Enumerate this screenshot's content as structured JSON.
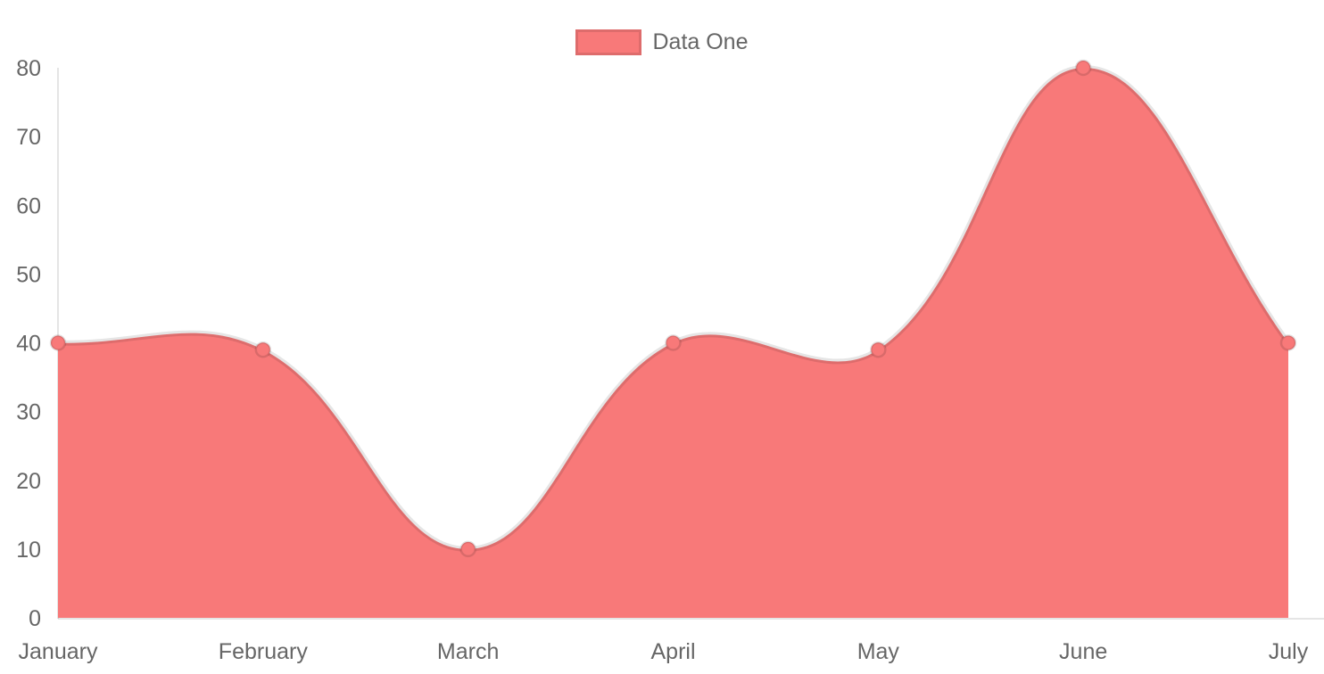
{
  "legend": {
    "position": "top",
    "items": [
      {
        "label": "Data One",
        "color": "#f87979"
      }
    ]
  },
  "chart_data": {
    "type": "area",
    "title": "",
    "xlabel": "",
    "ylabel": "",
    "categories": [
      "January",
      "February",
      "March",
      "April",
      "May",
      "June",
      "July"
    ],
    "series": [
      {
        "name": "Data One",
        "values": [
          40,
          39,
          10,
          40,
          39,
          80,
          40
        ]
      }
    ],
    "ylim": [
      0,
      80
    ],
    "yticks": [
      0,
      10,
      20,
      30,
      40,
      50,
      60,
      70,
      80
    ],
    "grid": false,
    "legend_position": "top",
    "line_tension": 0.4,
    "colors": {
      "area_fill": "#f87979",
      "line_stroke": "rgba(0,0,0,0.10)",
      "point_fill": "#f87979",
      "point_border": "rgba(0,0,0,0.12)",
      "axis_line": "rgba(0,0,0,0.10)",
      "tick_label": "#666666",
      "legend_label": "#666666"
    }
  }
}
